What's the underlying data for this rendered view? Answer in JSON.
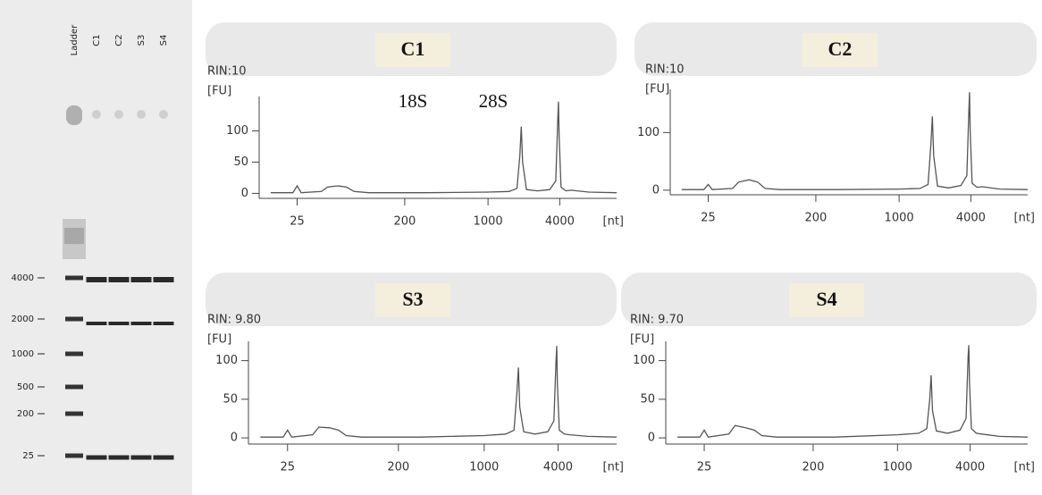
{
  "gel": {
    "lanes": [
      "Ladder",
      "C1",
      "C2",
      "S3",
      "S4"
    ],
    "sizes": [
      4000,
      2000,
      1000,
      500,
      200,
      25
    ]
  },
  "chart_data": [
    {
      "type": "line",
      "title": "C1",
      "subtitle": "RIN:10",
      "y_label": "[FU]",
      "x_label": "[nt]",
      "annotations": [
        "18S",
        "28S"
      ],
      "log_x": true,
      "xlim": [
        12,
        12000
      ],
      "xticks": [
        25,
        200,
        1000,
        4000
      ],
      "ylim": [
        -8,
        155
      ],
      "yticks": [
        0,
        50,
        100
      ],
      "color": "#555555",
      "x": [
        15,
        23,
        25,
        27,
        40,
        45,
        55,
        65,
        75,
        100,
        300,
        1000,
        1500,
        1750,
        1850,
        1900,
        1950,
        2100,
        2600,
        3300,
        3700,
        3850,
        3900,
        3950,
        4100,
        4500,
        5000,
        7000,
        12000
      ],
      "values": [
        1,
        1,
        12,
        1,
        3,
        10,
        12,
        10,
        3,
        1,
        1,
        2,
        3,
        8,
        60,
        107,
        50,
        6,
        4,
        6,
        20,
        120,
        147,
        90,
        10,
        4,
        5,
        2,
        1
      ]
    },
    {
      "type": "line",
      "title": "C2",
      "subtitle": "RIN:10",
      "y_label": "[FU]",
      "x_label": "[nt]",
      "log_x": true,
      "xlim": [
        12,
        12000
      ],
      "xticks": [
        25,
        200,
        1000,
        4000
      ],
      "ylim": [
        -8,
        175
      ],
      "yticks": [
        0,
        100
      ],
      "color": "#555555",
      "x": [
        15,
        23,
        25,
        27,
        40,
        45,
        55,
        65,
        75,
        100,
        300,
        1000,
        1500,
        1750,
        1850,
        1900,
        1950,
        2100,
        2600,
        3300,
        3700,
        3850,
        3900,
        3950,
        4100,
        4500,
        5000,
        7000,
        12000
      ],
      "values": [
        1,
        1,
        10,
        1,
        3,
        14,
        18,
        14,
        3,
        1,
        1,
        2,
        3,
        10,
        80,
        128,
        60,
        7,
        4,
        8,
        25,
        140,
        170,
        100,
        12,
        5,
        6,
        2,
        1
      ]
    },
    {
      "type": "line",
      "title": "S3",
      "subtitle": "RIN: 9.80",
      "y_label": "[FU]",
      "x_label": "[nt]",
      "log_x": true,
      "xlim": [
        12,
        12000
      ],
      "xticks": [
        25,
        200,
        1000,
        4000
      ],
      "ylim": [
        -8,
        125
      ],
      "yticks": [
        0,
        50,
        100
      ],
      "color": "#555555",
      "x": [
        15,
        23,
        25,
        27,
        40,
        45,
        55,
        65,
        75,
        100,
        300,
        1000,
        1500,
        1750,
        1850,
        1900,
        1950,
        2100,
        2600,
        3300,
        3700,
        3850,
        3900,
        3950,
        4100,
        4500,
        5000,
        7000,
        12000
      ],
      "values": [
        1,
        1,
        10,
        1,
        4,
        14,
        13,
        10,
        3,
        1,
        1,
        3,
        5,
        10,
        60,
        91,
        40,
        8,
        5,
        8,
        22,
        100,
        119,
        70,
        10,
        5,
        4,
        2,
        1
      ]
    },
    {
      "type": "line",
      "title": "S4",
      "subtitle": "RIN: 9.70",
      "y_label": "[FU]",
      "x_label": "[nt]",
      "log_x": true,
      "xlim": [
        12,
        12000
      ],
      "xticks": [
        25,
        200,
        1000,
        4000
      ],
      "ylim": [
        -8,
        125
      ],
      "yticks": [
        0,
        50,
        100
      ],
      "color": "#555555",
      "x": [
        15,
        23,
        25,
        27,
        40,
        45,
        55,
        65,
        75,
        100,
        300,
        1000,
        1500,
        1750,
        1850,
        1900,
        1950,
        2100,
        2600,
        3300,
        3700,
        3850,
        3900,
        3950,
        4100,
        4500,
        5000,
        7000,
        12000
      ],
      "values": [
        1,
        1,
        10,
        1,
        5,
        16,
        13,
        10,
        3,
        1,
        1,
        4,
        6,
        12,
        50,
        81,
        35,
        9,
        6,
        10,
        25,
        105,
        120,
        70,
        12,
        6,
        5,
        2,
        1
      ]
    }
  ]
}
